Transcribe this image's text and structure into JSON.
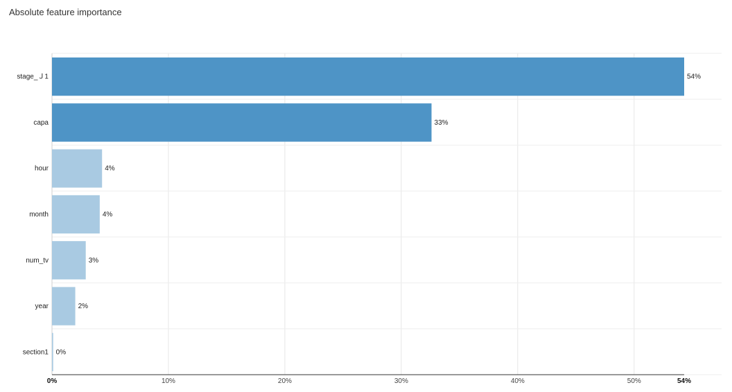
{
  "title": "Absolute feature importance",
  "chart_data": {
    "type": "bar",
    "orientation": "horizontal",
    "title": "Absolute feature importance",
    "categories": [
      "stage_Ｊ1",
      "capa",
      "hour",
      "month",
      "num_tv",
      "year",
      "section1"
    ],
    "values": [
      54.3,
      32.6,
      4.3,
      4.1,
      2.9,
      2.0,
      0.1
    ],
    "data_labels": [
      "54%",
      "33%",
      "4%",
      "4%",
      "3%",
      "2%",
      "0%"
    ],
    "colors": [
      "#4e94c6",
      "#4e94c6",
      "#a9cae2",
      "#a9cae2",
      "#a9cae2",
      "#a9cae2",
      "#a9cae2"
    ],
    "xlim": [
      0,
      54.3
    ],
    "x_ticks": [
      0,
      10,
      20,
      30,
      40,
      50
    ],
    "x_tick_labels": [
      "0%",
      "10%",
      "20%",
      "30%",
      "40%",
      "50%"
    ],
    "x_end_label": "54%",
    "grid": true,
    "legend": false
  }
}
